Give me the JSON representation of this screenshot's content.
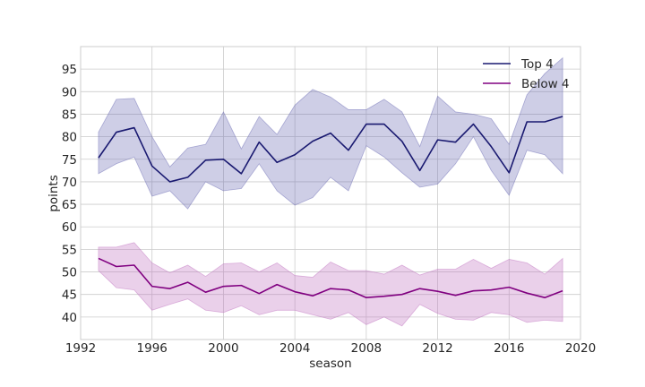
{
  "chart_data": {
    "type": "line",
    "title": "",
    "xlabel": "season",
    "ylabel": "points",
    "xlim": [
      1992,
      2020
    ],
    "ylim": [
      35,
      100
    ],
    "xticks": [
      1992,
      1996,
      2000,
      2004,
      2008,
      2012,
      2016,
      2020
    ],
    "yticks": [
      40,
      45,
      50,
      55,
      60,
      65,
      70,
      75,
      80,
      85,
      90,
      95
    ],
    "grid": true,
    "legend_position": "top-right",
    "x": [
      1993,
      1994,
      1995,
      1996,
      1997,
      1998,
      1999,
      2000,
      2001,
      2002,
      2003,
      2004,
      2005,
      2006,
      2007,
      2008,
      2009,
      2010,
      2011,
      2012,
      2013,
      2014,
      2015,
      2016,
      2017,
      2018,
      2019
    ],
    "series": [
      {
        "name": "Top 4",
        "color": "#191970",
        "band_color": "#6a6ab4",
        "values": [
          75.3,
          81.0,
          82.0,
          73.5,
          70.0,
          71.0,
          74.8,
          75.0,
          71.8,
          78.8,
          74.3,
          76.0,
          79.0,
          80.8,
          77.0,
          82.8,
          82.8,
          79.0,
          72.5,
          79.3,
          78.8,
          82.8,
          77.8,
          72.0,
          83.3,
          83.3,
          84.5
        ],
        "upper": [
          81.0,
          88.3,
          88.5,
          80.0,
          73.3,
          77.5,
          78.3,
          85.5,
          77.3,
          84.5,
          80.5,
          87.0,
          90.5,
          88.8,
          86.0,
          86.0,
          88.3,
          85.5,
          77.8,
          89.0,
          85.5,
          85.0,
          84.0,
          78.3,
          89.3,
          94.0,
          97.5
        ],
        "lower": [
          71.8,
          74.0,
          75.5,
          66.8,
          68.0,
          64.0,
          70.0,
          68.0,
          68.5,
          74.0,
          68.0,
          64.8,
          66.5,
          71.0,
          68.0,
          78.0,
          75.5,
          72.0,
          68.8,
          69.5,
          74.0,
          80.0,
          72.5,
          67.0,
          77.0,
          76.0,
          71.8
        ]
      },
      {
        "name": "Below 4",
        "color": "#800080",
        "band_color": "#c071c0",
        "values": [
          53.0,
          51.2,
          51.5,
          46.8,
          46.3,
          47.7,
          45.5,
          46.8,
          47.0,
          45.2,
          47.2,
          45.6,
          44.7,
          46.3,
          46.0,
          44.3,
          44.6,
          45.0,
          46.3,
          45.7,
          44.8,
          45.8,
          46.0,
          46.6,
          45.3,
          44.3,
          45.8
        ],
        "upper": [
          55.5,
          55.5,
          56.5,
          52.0,
          49.8,
          51.5,
          49.0,
          51.8,
          52.0,
          50.0,
          52.0,
          49.2,
          48.8,
          52.2,
          50.3,
          50.3,
          49.5,
          51.5,
          49.3,
          50.6,
          50.6,
          52.8,
          50.8,
          52.8,
          52.0,
          49.5,
          53.0
        ],
        "lower": [
          50.3,
          46.5,
          46.0,
          41.5,
          42.8,
          44.0,
          41.5,
          41.0,
          42.5,
          40.5,
          41.5,
          41.5,
          40.5,
          39.5,
          41.0,
          38.3,
          40.0,
          38.0,
          42.8,
          40.8,
          39.5,
          39.3,
          41.0,
          40.5,
          38.8,
          39.3,
          39.0
        ]
      }
    ]
  }
}
